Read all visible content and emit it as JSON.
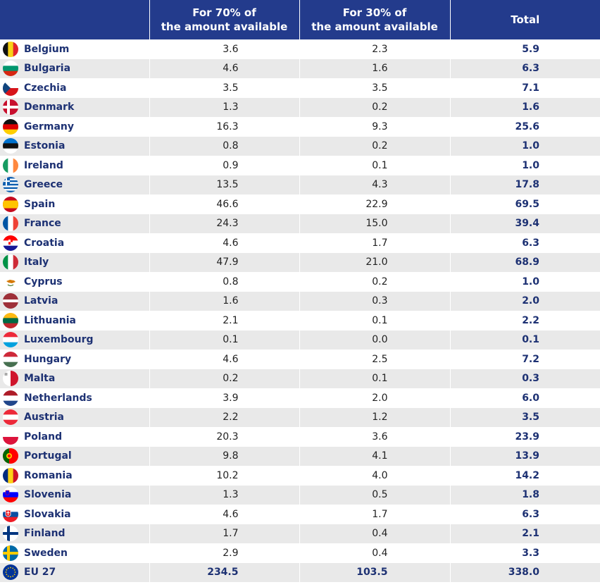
{
  "header": {
    "col1_line1": "For 70% of",
    "col1_line2": "the amount available",
    "col2_line1": "For 30% of",
    "col2_line2": "the amount available",
    "col3": "Total"
  },
  "rows": [
    {
      "country": "Belgium",
      "v70": "3.6",
      "v30": "2.3",
      "total": "5.9",
      "flag": "belgium-flag-icon"
    },
    {
      "country": "Bulgaria",
      "v70": "4.6",
      "v30": "1.6",
      "total": "6.3",
      "flag": "bulgaria-flag-icon"
    },
    {
      "country": "Czechia",
      "v70": "3.5",
      "v30": "3.5",
      "total": "7.1",
      "flag": "czechia-flag-icon"
    },
    {
      "country": "Denmark",
      "v70": "1.3",
      "v30": "0.2",
      "total": "1.6",
      "flag": "denmark-flag-icon"
    },
    {
      "country": "Germany",
      "v70": "16.3",
      "v30": "9.3",
      "total": "25.6",
      "flag": "germany-flag-icon"
    },
    {
      "country": "Estonia",
      "v70": "0.8",
      "v30": "0.2",
      "total": "1.0",
      "flag": "estonia-flag-icon"
    },
    {
      "country": "Ireland",
      "v70": "0.9",
      "v30": "0.1",
      "total": "1.0",
      "flag": "ireland-flag-icon"
    },
    {
      "country": "Greece",
      "v70": "13.5",
      "v30": "4.3",
      "total": "17.8",
      "flag": "greece-flag-icon"
    },
    {
      "country": "Spain",
      "v70": "46.6",
      "v30": "22.9",
      "total": "69.5",
      "flag": "spain-flag-icon"
    },
    {
      "country": "France",
      "v70": "24.3",
      "v30": "15.0",
      "total": "39.4",
      "flag": "france-flag-icon"
    },
    {
      "country": "Croatia",
      "v70": "4.6",
      "v30": "1.7",
      "total": "6.3",
      "flag": "croatia-flag-icon"
    },
    {
      "country": "Italy",
      "v70": "47.9",
      "v30": "21.0",
      "total": "68.9",
      "flag": "italy-flag-icon"
    },
    {
      "country": "Cyprus",
      "v70": "0.8",
      "v30": "0.2",
      "total": "1.0",
      "flag": "cyprus-flag-icon"
    },
    {
      "country": "Latvia",
      "v70": "1.6",
      "v30": "0.3",
      "total": "2.0",
      "flag": "latvia-flag-icon"
    },
    {
      "country": "Lithuania",
      "v70": "2.1",
      "v30": "0.1",
      "total": "2.2",
      "flag": "lithuania-flag-icon"
    },
    {
      "country": "Luxembourg",
      "v70": "0.1",
      "v30": "0.0",
      "total": "0.1",
      "flag": "luxembourg-flag-icon"
    },
    {
      "country": "Hungary",
      "v70": "4.6",
      "v30": "2.5",
      "total": "7.2",
      "flag": "hungary-flag-icon"
    },
    {
      "country": "Malta",
      "v70": "0.2",
      "v30": "0.1",
      "total": "0.3",
      "flag": "malta-flag-icon"
    },
    {
      "country": "Netherlands",
      "v70": "3.9",
      "v30": "2.0",
      "total": "6.0",
      "flag": "netherlands-flag-icon"
    },
    {
      "country": "Austria",
      "v70": "2.2",
      "v30": "1.2",
      "total": "3.5",
      "flag": "austria-flag-icon"
    },
    {
      "country": "Poland",
      "v70": "20.3",
      "v30": "3.6",
      "total": "23.9",
      "flag": "poland-flag-icon"
    },
    {
      "country": "Portugal",
      "v70": "9.8",
      "v30": "4.1",
      "total": "13.9",
      "flag": "portugal-flag-icon"
    },
    {
      "country": "Romania",
      "v70": "10.2",
      "v30": "4.0",
      "total": "14.2",
      "flag": "romania-flag-icon"
    },
    {
      "country": "Slovenia",
      "v70": "1.3",
      "v30": "0.5",
      "total": "1.8",
      "flag": "slovenia-flag-icon"
    },
    {
      "country": "Slovakia",
      "v70": "4.6",
      "v30": "1.7",
      "total": "6.3",
      "flag": "slovakia-flag-icon"
    },
    {
      "country": "Finland",
      "v70": "1.7",
      "v30": "0.4",
      "total": "2.1",
      "flag": "finland-flag-icon"
    },
    {
      "country": "Sweden",
      "v70": "2.9",
      "v30": "0.4",
      "total": "3.3",
      "flag": "sweden-flag-icon"
    },
    {
      "country": "EU 27",
      "v70": "234.5",
      "v30": "103.5",
      "total": "338.0",
      "flag": "eu-flag-icon"
    }
  ],
  "colors": {
    "header_bg": "#233b8c",
    "label_text": "#1d3173",
    "stripe": "#e9e9e9"
  }
}
